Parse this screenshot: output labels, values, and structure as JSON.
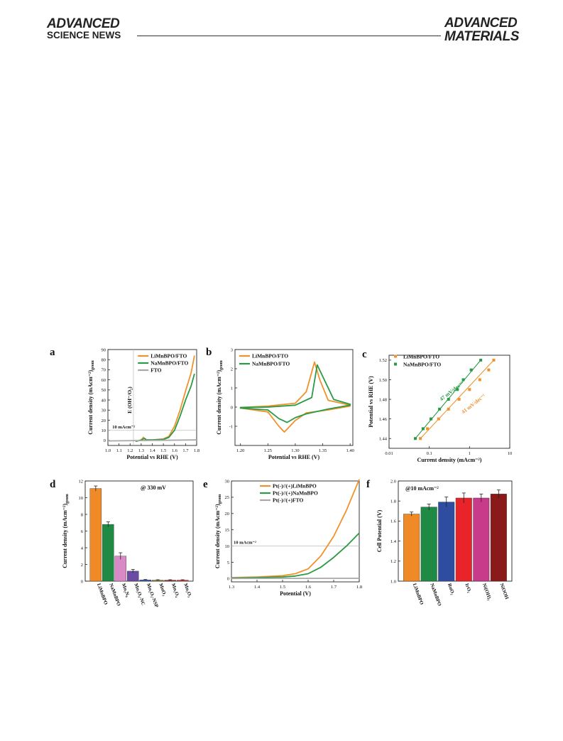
{
  "header": {
    "brand_line1": "ADVANCED",
    "brand_line2": "SCIENCE NEWS",
    "journal_line1": "ADVANCED",
    "journal_line2": "MATERIALS"
  },
  "colors": {
    "orange": "#f0922b",
    "green": "#2a9a46",
    "gray": "#a8a8a8"
  },
  "chart_data": [
    {
      "panel": "a",
      "type": "line",
      "xlabel": "Potential vs RHE (V)",
      "ylabel": "Current density (mAcm⁻²)",
      "ylabel_sub": "geom",
      "xlim": [
        1.0,
        1.8
      ],
      "ylim": [
        -5,
        90
      ],
      "xticks": [
        "1.0",
        "1.1",
        "1.2",
        "1.3",
        "1.4",
        "1.5",
        "1.6",
        "1.7",
        "1.8"
      ],
      "yticks": [
        "0",
        "10",
        "20",
        "30",
        "40",
        "50",
        "60",
        "70",
        "80",
        "90"
      ],
      "annotations": [
        "E (OH⁻/O₂)",
        "10 mAcm⁻²"
      ],
      "series": [
        {
          "name": "LiMnBPO/FTO",
          "color": "#f0922b",
          "points": [
            [
              1.25,
              -1
            ],
            [
              1.3,
              0.5
            ],
            [
              1.32,
              3
            ],
            [
              1.34,
              0.5
            ],
            [
              1.4,
              0.5
            ],
            [
              1.5,
              1.5
            ],
            [
              1.55,
              4
            ],
            [
              1.6,
              14
            ],
            [
              1.65,
              30
            ],
            [
              1.7,
              49
            ],
            [
              1.75,
              67
            ],
            [
              1.78,
              84
            ]
          ]
        },
        {
          "name": "NaMnBPO/FTO",
          "color": "#2a9a46",
          "points": [
            [
              1.25,
              -1
            ],
            [
              1.3,
              0.5
            ],
            [
              1.33,
              2
            ],
            [
              1.35,
              0.5
            ],
            [
              1.4,
              0.5
            ],
            [
              1.5,
              1
            ],
            [
              1.55,
              3
            ],
            [
              1.6,
              10
            ],
            [
              1.65,
              24
            ],
            [
              1.7,
              40
            ],
            [
              1.75,
              54
            ],
            [
              1.78,
              66
            ]
          ]
        },
        {
          "name": "FTO",
          "color": "#a8a8a8",
          "points": [
            [
              1.0,
              -0.5
            ],
            [
              1.8,
              0.5
            ]
          ]
        }
      ]
    },
    {
      "panel": "b",
      "type": "line",
      "xlabel": "Potential vs RHE (V)",
      "ylabel": "Current density (mAcm⁻²)",
      "ylabel_sub": "geom",
      "xlim": [
        1.19,
        1.405
      ],
      "ylim": [
        -2,
        3
      ],
      "xticks": [
        "1.20",
        "1.25",
        "1.30",
        "1.35",
        "1.40"
      ],
      "yticks": [
        "-1",
        "0",
        "1",
        "2",
        "3"
      ],
      "series": [
        {
          "name": "LiMnBPO/FTO",
          "color": "#f0922b",
          "points": [
            [
              1.2,
              -0.02
            ],
            [
              1.25,
              0.05
            ],
            [
              1.3,
              0.2
            ],
            [
              1.32,
              0.8
            ],
            [
              1.335,
              2.35
            ],
            [
              1.345,
              1.4
            ],
            [
              1.36,
              0.35
            ],
            [
              1.4,
              0.1
            ],
            [
              1.4,
              0.05
            ],
            [
              1.36,
              -0.15
            ],
            [
              1.32,
              -0.3
            ],
            [
              1.3,
              -0.7
            ],
            [
              1.28,
              -1.3
            ],
            [
              1.27,
              -1.0
            ],
            [
              1.25,
              -0.25
            ],
            [
              1.2,
              -0.05
            ]
          ]
        },
        {
          "name": "NaMnBPO/FTO",
          "color": "#2a9a46",
          "points": [
            [
              1.2,
              -0.02
            ],
            [
              1.25,
              0.0
            ],
            [
              1.3,
              0.1
            ],
            [
              1.33,
              0.5
            ],
            [
              1.34,
              2.2
            ],
            [
              1.35,
              1.6
            ],
            [
              1.37,
              0.4
            ],
            [
              1.4,
              0.15
            ],
            [
              1.4,
              0.1
            ],
            [
              1.36,
              -0.1
            ],
            [
              1.32,
              -0.35
            ],
            [
              1.3,
              -0.55
            ],
            [
              1.285,
              -0.8
            ],
            [
              1.27,
              -0.6
            ],
            [
              1.25,
              -0.15
            ],
            [
              1.2,
              -0.05
            ]
          ]
        }
      ]
    },
    {
      "panel": "c",
      "type": "scatter",
      "xlabel": "Current density (mAcm⁻²)",
      "ylabel": "Potential vs RHE (V)",
      "xscale": "log",
      "xlim": [
        0.01,
        10
      ],
      "ylim": [
        1.43,
        1.525
      ],
      "xticks": [
        "0.01",
        "0.1",
        "1",
        "10"
      ],
      "yticks": [
        "1.44",
        "1.46",
        "1.48",
        "1.50",
        "1.52"
      ],
      "annotations": [
        "47 mV/dec⁻¹",
        "41 mV/dec⁻¹"
      ],
      "series": [
        {
          "name": "LiMnBPO/FTO",
          "color": "#f0922b",
          "points": [
            [
              0.06,
              1.44
            ],
            [
              0.09,
              1.45
            ],
            [
              0.17,
              1.46
            ],
            [
              0.3,
              1.47
            ],
            [
              0.55,
              1.48
            ],
            [
              1.0,
              1.49
            ],
            [
              1.8,
              1.5
            ],
            [
              3.0,
              1.51
            ],
            [
              4.0,
              1.52
            ]
          ]
        },
        {
          "name": "NaMnBPO/FTO",
          "color": "#2a9a46",
          "points": [
            [
              0.045,
              1.44
            ],
            [
              0.07,
              1.45
            ],
            [
              0.11,
              1.46
            ],
            [
              0.18,
              1.47
            ],
            [
              0.3,
              1.48
            ],
            [
              0.5,
              1.49
            ],
            [
              0.7,
              1.5
            ],
            [
              1.1,
              1.51
            ],
            [
              1.9,
              1.52
            ]
          ]
        }
      ]
    },
    {
      "panel": "d",
      "type": "bar",
      "ylabel": "Current density (mAcm⁻²)",
      "ylabel_sub": "geom",
      "annotation": "@ 330 mV",
      "ylim": [
        0,
        12
      ],
      "yticks": [
        "0",
        "2",
        "4",
        "6",
        "8",
        "10",
        "12"
      ],
      "categories": [
        "LiMnBPO",
        "NaMnBPO",
        "Mn₂N₀",
        "Mn₃O₄-NC",
        "Mn₂O₃-NSP",
        "MnO₂",
        "Mn₃O₄",
        "Mn₂O₃"
      ],
      "values": [
        11.1,
        6.8,
        3.0,
        1.2,
        0.15,
        0.12,
        0.12,
        0.12
      ],
      "errors": [
        0.3,
        0.3,
        0.4,
        0.2,
        0.05,
        0.05,
        0.05,
        0.05
      ],
      "colors": [
        "#f08a26",
        "#1e8a44",
        "#d98ac6",
        "#6a4aa2",
        "#3b5bb8",
        "#8a8a2a",
        "#9e2a2a",
        "#e0302a"
      ]
    },
    {
      "panel": "e",
      "type": "line",
      "xlabel": "Potential (V)",
      "ylabel": "Current density (mAcm⁻²)",
      "ylabel_sub": "geom",
      "xlim": [
        1.3,
        1.8
      ],
      "ylim": [
        -1,
        30
      ],
      "xticks": [
        "1.3",
        "1.4",
        "1.5",
        "1.6",
        "1.7",
        "1.8"
      ],
      "yticks": [
        "0",
        "5",
        "10",
        "15",
        "20",
        "25",
        "30"
      ],
      "annotations": [
        "10 mAcm⁻²"
      ],
      "series": [
        {
          "name": "Pt(-)//(+)LiMnBPO",
          "color": "#f0922b",
          "points": [
            [
              1.3,
              0.3
            ],
            [
              1.4,
              0.5
            ],
            [
              1.5,
              0.9
            ],
            [
              1.55,
              1.5
            ],
            [
              1.6,
              3
            ],
            [
              1.65,
              7
            ],
            [
              1.7,
              13
            ],
            [
              1.75,
              21
            ],
            [
              1.8,
              30.5
            ]
          ]
        },
        {
          "name": "Pt(-)//(+)NaMnBPO",
          "color": "#2a9a46",
          "points": [
            [
              1.3,
              0.2
            ],
            [
              1.4,
              0.3
            ],
            [
              1.5,
              0.5
            ],
            [
              1.55,
              0.8
            ],
            [
              1.6,
              1.5
            ],
            [
              1.65,
              3.5
            ],
            [
              1.7,
              6.5
            ],
            [
              1.75,
              10
            ],
            [
              1.8,
              14
            ]
          ]
        },
        {
          "name": "Pt(-)//(+)FTO",
          "color": "#a8a8a8",
          "points": [
            [
              1.3,
              0.05
            ],
            [
              1.8,
              0.1
            ]
          ]
        }
      ]
    },
    {
      "panel": "f",
      "type": "bar",
      "ylabel": "Cell Potential (V)",
      "annotation": "@10 mAcm⁻²",
      "ylim": [
        1.0,
        2.0
      ],
      "yticks": [
        "1.0",
        "1.2",
        "1.4",
        "1.6",
        "1.8",
        "2.0"
      ],
      "categories": [
        "LiMnBPO",
        "NaMnBPO",
        "RuO₂",
        "IrO₂",
        "Ni(OH)₂",
        "NiOOH"
      ],
      "values": [
        1.67,
        1.74,
        1.79,
        1.83,
        1.83,
        1.87
      ],
      "errors": [
        0.02,
        0.03,
        0.05,
        0.05,
        0.04,
        0.04
      ],
      "colors": [
        "#f08a26",
        "#1e8a44",
        "#2f4da0",
        "#e8232a",
        "#c83a8a",
        "#8a1a1a"
      ]
    }
  ]
}
